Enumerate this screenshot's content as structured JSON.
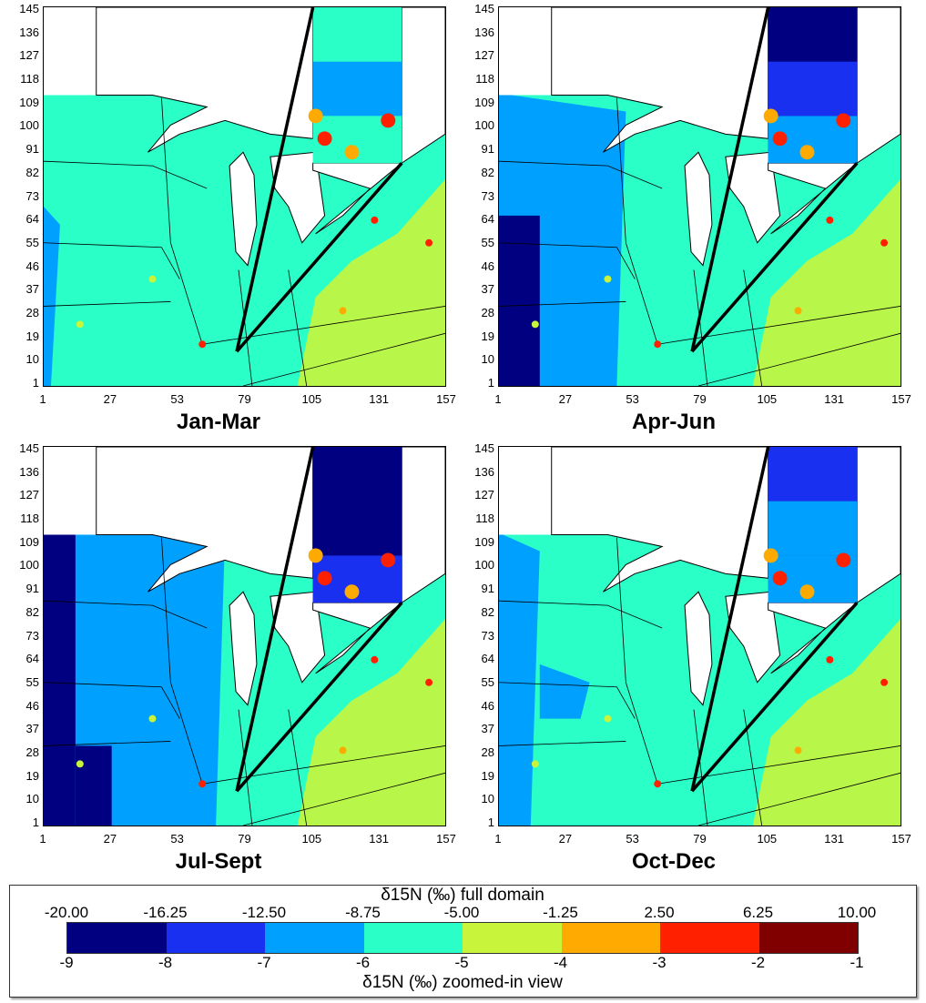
{
  "panels": [
    {
      "title": "Jan-Mar",
      "variant": 0
    },
    {
      "title": "Apr-Jun",
      "variant": 1
    },
    {
      "title": "Jul-Sept",
      "variant": 2
    },
    {
      "title": "Oct-Dec",
      "variant": 3
    }
  ],
  "y_ticks": [
    "145",
    "136",
    "127",
    "118",
    "109",
    "100",
    "91",
    "82",
    "73",
    "64",
    "55",
    "46",
    "37",
    "28",
    "19",
    "10",
    "1"
  ],
  "x_ticks": [
    "1",
    "27",
    "53",
    "79",
    "105",
    "131",
    "157"
  ],
  "legend": {
    "top_title": "δ15N (‰) full domain",
    "bottom_title": "δ15N (‰) zoomed-in view",
    "top_labels": [
      "-20.00",
      "-16.25",
      "-12.50",
      "-8.75",
      "-5.00",
      "-1.25",
      "2.50",
      "6.25",
      "10.00"
    ],
    "bottom_labels": [
      "-9",
      "-8",
      "-7",
      "-6",
      "-5",
      "-4",
      "-3",
      "-2",
      "-1"
    ],
    "colors": [
      "#000080",
      "#1a30f0",
      "#00a0ff",
      "#2affc8",
      "#c8f53c",
      "#ffaa00",
      "#ff2000",
      "#800000"
    ]
  },
  "chart_data": {
    "type": "heatmap",
    "title": "",
    "panel_titles": [
      "Jan-Mar",
      "Apr-Jun",
      "Jul-Sept",
      "Oct-Dec"
    ],
    "x_range": [
      1,
      157
    ],
    "y_range": [
      1,
      145
    ],
    "x_ticks": [
      1,
      27,
      53,
      79,
      105,
      131,
      157
    ],
    "y_ticks": [
      1,
      10,
      19,
      28,
      37,
      46,
      55,
      64,
      73,
      82,
      91,
      100,
      109,
      118,
      127,
      136,
      145
    ],
    "colorbar_full_domain": [
      -20.0,
      -16.25,
      -12.5,
      -8.75,
      -5.0,
      -1.25,
      2.5,
      6.25,
      10.0
    ],
    "colorbar_zoomed": [
      -9,
      -8,
      -7,
      -6,
      -5,
      -4,
      -3,
      -2,
      -1
    ]
  }
}
